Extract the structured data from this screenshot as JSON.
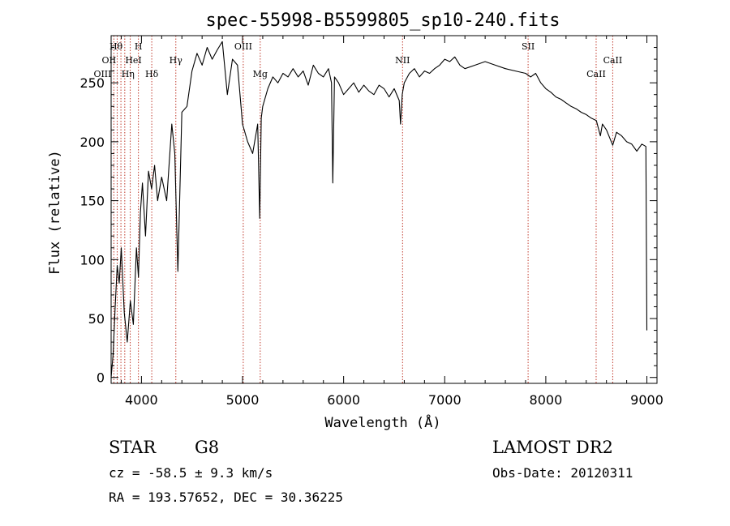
{
  "chart_data": {
    "type": "line",
    "title": "spec-55998-B5599805_sp10-240.fits",
    "xlabel": "Wavelength (Å)",
    "ylabel": "Flux (relative)",
    "xlim": [
      3700,
      9100
    ],
    "ylim": [
      -5,
      290
    ],
    "xticks": [
      4000,
      5000,
      6000,
      7000,
      8000,
      9000
    ],
    "yticks": [
      0,
      50,
      100,
      150,
      200,
      250
    ],
    "grid": false,
    "series": [
      {
        "x": [
          3700,
          3720,
          3740,
          3760,
          3780,
          3800,
          3830,
          3860,
          3890,
          3920,
          3950,
          3970,
          3990,
          4010,
          4040,
          4070,
          4100,
          4130,
          4160,
          4200,
          4250,
          4300,
          4330,
          4360,
          4400,
          4450,
          4500,
          4550,
          4600,
          4650,
          4700,
          4750,
          4800,
          4850,
          4900,
          4950,
          5000,
          5050,
          5100,
          5150,
          5170,
          5185,
          5200,
          5250,
          5300,
          5350,
          5400,
          5450,
          5500,
          5550,
          5600,
          5650,
          5700,
          5750,
          5800,
          5850,
          5880,
          5893,
          5910,
          5950,
          6000,
          6050,
          6100,
          6150,
          6200,
          6250,
          6300,
          6350,
          6400,
          6450,
          6500,
          6550,
          6563,
          6580,
          6600,
          6650,
          6700,
          6750,
          6800,
          6850,
          6900,
          6950,
          7000,
          7050,
          7100,
          7150,
          7200,
          7300,
          7400,
          7500,
          7600,
          7700,
          7800,
          7850,
          7900,
          7950,
          8000,
          8050,
          8100,
          8150,
          8200,
          8250,
          8300,
          8350,
          8400,
          8450,
          8500,
          8540,
          8560,
          8600,
          8662,
          8700,
          8750,
          8800,
          8850,
          8900,
          8950,
          8990,
          9000
        ],
        "y": [
          0,
          20,
          60,
          95,
          80,
          110,
          55,
          30,
          65,
          45,
          110,
          85,
          140,
          165,
          120,
          175,
          160,
          180,
          150,
          170,
          150,
          215,
          190,
          90,
          225,
          230,
          260,
          275,
          265,
          280,
          270,
          278,
          285,
          240,
          270,
          265,
          215,
          200,
          190,
          215,
          135,
          220,
          230,
          245,
          255,
          250,
          258,
          255,
          262,
          255,
          260,
          248,
          265,
          258,
          255,
          262,
          250,
          165,
          255,
          250,
          240,
          245,
          250,
          242,
          248,
          243,
          240,
          248,
          245,
          238,
          245,
          235,
          215,
          240,
          250,
          258,
          262,
          255,
          260,
          258,
          262,
          265,
          270,
          268,
          272,
          265,
          262,
          265,
          268,
          265,
          262,
          260,
          258,
          255,
          258,
          250,
          245,
          242,
          238,
          236,
          233,
          230,
          228,
          225,
          223,
          220,
          218,
          205,
          215,
          210,
          197,
          208,
          205,
          200,
          198,
          192,
          198,
          196,
          40
        ]
      }
    ],
    "lines": [
      {
        "label": "Hθ",
        "x": 3797
      },
      {
        "label": "H",
        "x": 3970
      },
      {
        "label": "OII",
        "x": 3727
      },
      {
        "label": "HeI",
        "x": 3889
      },
      {
        "label": "OIII",
        "x": 3760
      },
      {
        "label": "Hη",
        "x": 3835
      },
      {
        "label": "Hγ",
        "x": 4340
      },
      {
        "label": "Hδ",
        "x": 4102
      },
      {
        "label": "OIII",
        "x": 5007
      },
      {
        "label": "Mg",
        "x": 5175
      },
      {
        "label": "NII",
        "x": 6583
      },
      {
        "label": "SII",
        "x": 7825
      },
      {
        "label": "CaII",
        "x": 8662
      },
      {
        "label": "CaII",
        "x": 8498
      }
    ]
  },
  "info": {
    "object_class": "STAR",
    "subclass": "G8",
    "survey": "LAMOST DR2",
    "cz": "cz = -58.5 ± 9.3 km/s",
    "obs_date": "Obs-Date: 20120311",
    "coords": "RA = 193.57652, DEC =  30.36225"
  }
}
